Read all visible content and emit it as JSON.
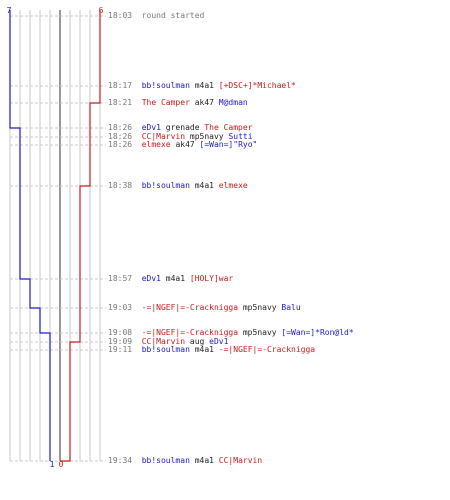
{
  "teams": {
    "blue": {
      "color": "#1a1acc",
      "start_count": "7",
      "end_count": "1"
    },
    "red": {
      "color": "#cc1a1a",
      "start_count": "6",
      "end_count": "0"
    }
  },
  "colors": {
    "grid": "#c8c8c8",
    "center": "#555555",
    "time": "#777777",
    "neutral": "#222222"
  },
  "rows": [
    {
      "time": "18:03",
      "parts": [
        {
          "t": "round started",
          "c": "gray"
        }
      ]
    },
    {
      "time": "18:17",
      "parts": [
        {
          "t": "bb!soulman",
          "c": "blue"
        },
        {
          "t": " m4a1 ",
          "c": "black"
        },
        {
          "t": "[+DSC+]*Michael*",
          "c": "red"
        }
      ]
    },
    {
      "time": "18:21",
      "parts": [
        {
          "t": "The Camper",
          "c": "red"
        },
        {
          "t": " ak47 ",
          "c": "black"
        },
        {
          "t": "M@dman",
          "c": "blue"
        }
      ]
    },
    {
      "time": "18:26",
      "parts": [
        {
          "t": "eDv1",
          "c": "blue"
        },
        {
          "t": " grenade ",
          "c": "black"
        },
        {
          "t": "The Camper",
          "c": "red"
        }
      ]
    },
    {
      "time": "18:26",
      "parts": [
        {
          "t": "CC|Marvin",
          "c": "red"
        },
        {
          "t": " mp5navy ",
          "c": "black"
        },
        {
          "t": "Sutti",
          "c": "blue"
        }
      ]
    },
    {
      "time": "18:26",
      "parts": [
        {
          "t": "elmexe",
          "c": "red"
        },
        {
          "t": " ak47 ",
          "c": "black"
        },
        {
          "t": "[=Wan=]\"Ryo\"",
          "c": "blue"
        }
      ]
    },
    {
      "time": "18:38",
      "parts": [
        {
          "t": "bb!soulman",
          "c": "blue"
        },
        {
          "t": " m4a1 ",
          "c": "black"
        },
        {
          "t": "elmexe",
          "c": "red"
        }
      ]
    },
    {
      "time": "18:57",
      "parts": [
        {
          "t": "eDv1",
          "c": "blue"
        },
        {
          "t": " m4a1 ",
          "c": "black"
        },
        {
          "t": "[HOLY]war",
          "c": "red"
        }
      ]
    },
    {
      "time": "19:03",
      "parts": [
        {
          "t": "-=|NGEF|=-Cracknigga",
          "c": "red"
        },
        {
          "t": " mp5navy ",
          "c": "black"
        },
        {
          "t": "Balu",
          "c": "blue"
        }
      ]
    },
    {
      "time": "19:08",
      "parts": [
        {
          "t": "-=|NGEF|=-Cracknigga",
          "c": "red"
        },
        {
          "t": " mp5navy ",
          "c": "black"
        },
        {
          "t": "[=Wan=]*Ron@ld*",
          "c": "blue"
        }
      ]
    },
    {
      "time": "19:09",
      "parts": [
        {
          "t": "CC|Marvin",
          "c": "red"
        },
        {
          "t": " aug ",
          "c": "black"
        },
        {
          "t": "eDv1",
          "c": "blue"
        }
      ]
    },
    {
      "time": "19:11",
      "parts": [
        {
          "t": "bb!soulman",
          "c": "blue"
        },
        {
          "t": " m4a1 ",
          "c": "black"
        },
        {
          "t": "-=|NGEF|=-Cracknigga",
          "c": "red"
        }
      ]
    },
    {
      "time": "19:34",
      "parts": [
        {
          "t": "bb!soulman",
          "c": "blue"
        },
        {
          "t": " m4a1 ",
          "c": "black"
        },
        {
          "t": "CC|Marvin",
          "c": "red"
        }
      ]
    }
  ]
}
